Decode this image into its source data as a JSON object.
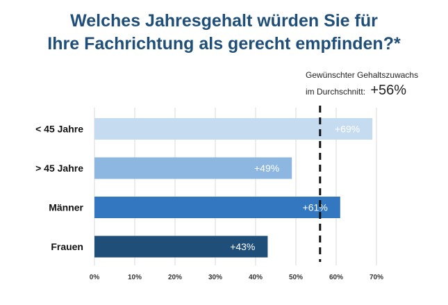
{
  "chart_data": {
    "type": "bar",
    "orientation": "horizontal",
    "title": [
      "Welches Jahresgehalt würden Sie für",
      "Ihre Fachrichtung als gerecht empfinden?*"
    ],
    "categories": [
      "< 45 Jahre",
      "> 45 Jahre",
      "Männer",
      "Frauen"
    ],
    "values": [
      69,
      49,
      61,
      43
    ],
    "value_labels": [
      "+69%",
      "+49%",
      "+61%",
      "+43%"
    ],
    "colors": [
      "#c5dbf0",
      "#8db6e0",
      "#3477c1",
      "#1f4e79"
    ],
    "xlim": [
      0,
      70
    ],
    "x_ticks": [
      "0%",
      "10%",
      "20%",
      "30%",
      "40%",
      "50%",
      "60%",
      "70%"
    ],
    "grid": true,
    "reference_line": {
      "value": 56,
      "style": "dashed",
      "label_line1": "Gewünschter  Gehaltszuwachs",
      "label_line2": "im Durchschnitt:",
      "label_value": "+56%"
    }
  }
}
